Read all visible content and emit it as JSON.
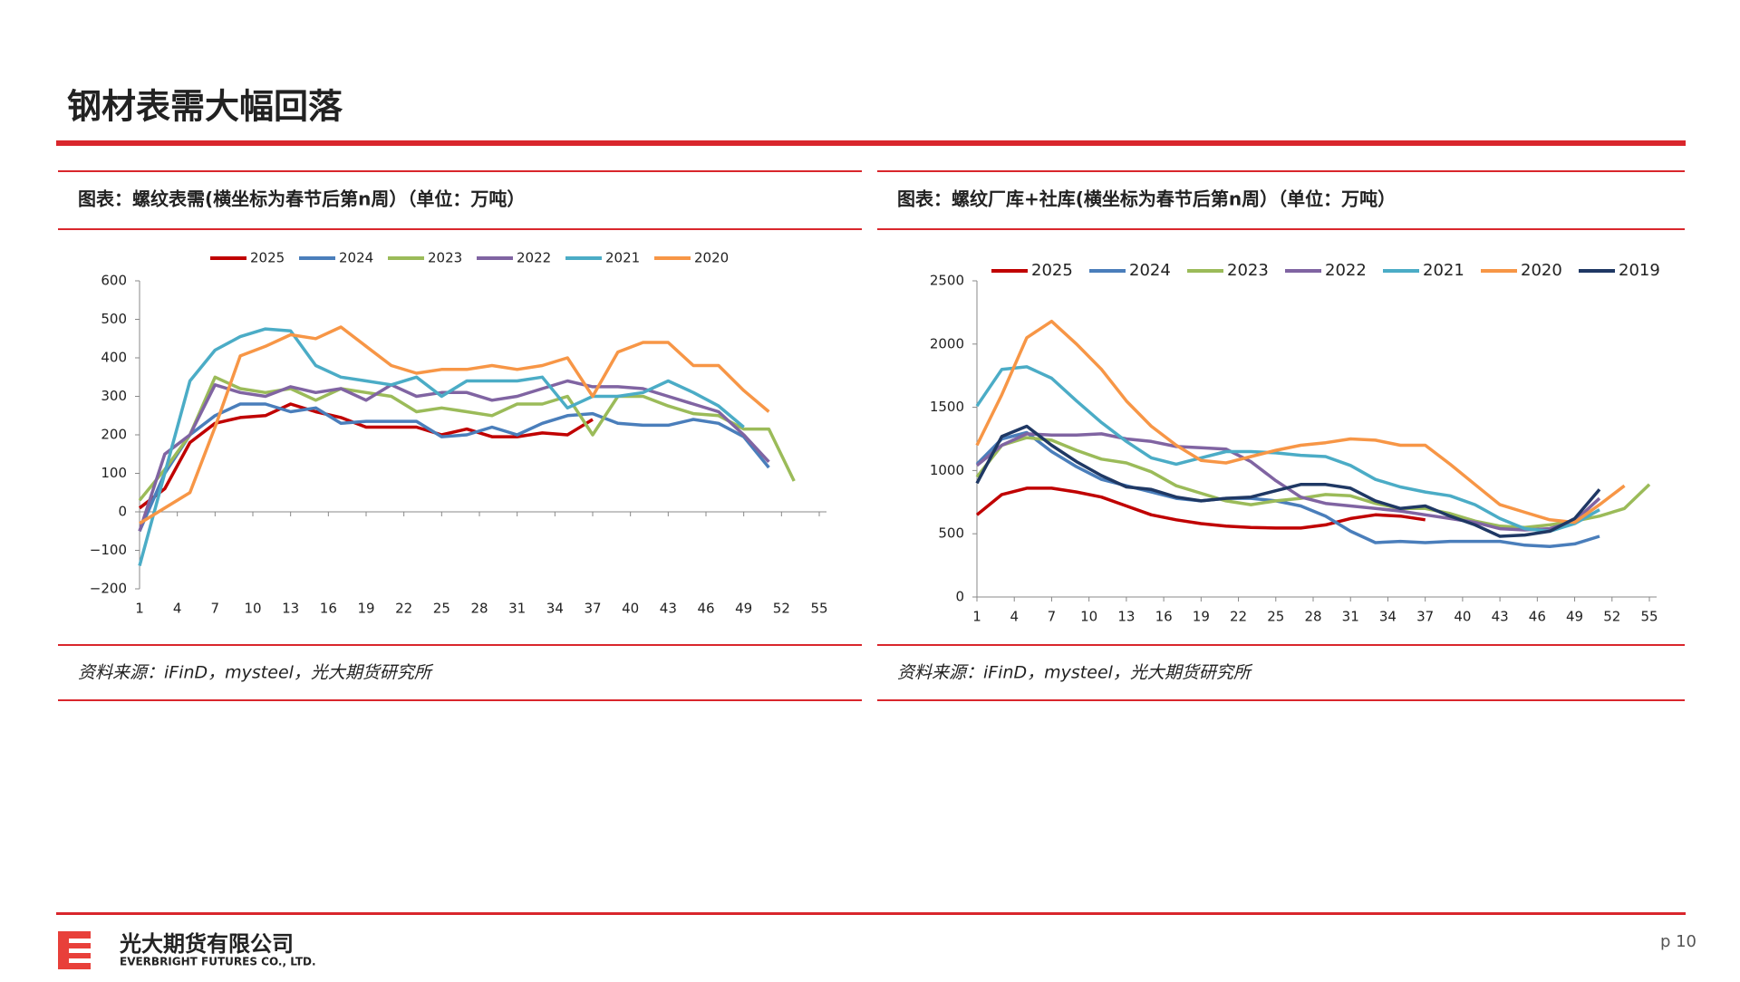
{
  "header": {
    "title": "钢材表需大幅回落"
  },
  "footer": {
    "company": "光大期货有限公司",
    "company_en": "EVERBRIGHT FUTURES CO., LTD.",
    "page": "p 10"
  },
  "chart_data": [
    {
      "type": "line",
      "title": "图表：螺纹表需(横坐标为春节后第n周）（单位：万吨）",
      "source": "资料来源：iFinD，mysteel，光大期货研究所",
      "x": [
        1,
        3,
        5,
        7,
        9,
        11,
        13,
        15,
        17,
        19,
        21,
        23,
        25,
        27,
        29,
        31,
        33,
        35,
        37,
        39,
        41,
        43,
        45,
        47,
        49,
        51,
        53
      ],
      "xlim": [
        1,
        55
      ],
      "xticks": [
        1,
        4,
        7,
        10,
        13,
        16,
        19,
        22,
        25,
        28,
        31,
        34,
        37,
        40,
        43,
        46,
        49,
        52,
        55
      ],
      "ylim": [
        -200,
        600
      ],
      "yticks": [
        {
          "value": -200,
          "label": "−200"
        },
        {
          "value": -100,
          "label": "−100"
        },
        0,
        100,
        200,
        300,
        400,
        500,
        600
      ],
      "series": [
        {
          "name": "2025",
          "color": "#c00000",
          "values": [
            10,
            60,
            180,
            230,
            245,
            250,
            280,
            260,
            245,
            220,
            220,
            220,
            200,
            215,
            195,
            195,
            205,
            200,
            240,
            null,
            null,
            null,
            null,
            null,
            null,
            null,
            null
          ]
        },
        {
          "name": "2024",
          "color": "#4a7ebb",
          "values": [
            -50,
            100,
            200,
            250,
            280,
            280,
            260,
            270,
            230,
            235,
            235,
            235,
            195,
            200,
            220,
            200,
            230,
            250,
            255,
            230,
            225,
            225,
            240,
            230,
            195,
            115,
            null
          ]
        },
        {
          "name": "2023",
          "color": "#9bbb59",
          "values": [
            30,
            110,
            200,
            350,
            320,
            310,
            320,
            290,
            320,
            310,
            300,
            260,
            270,
            260,
            250,
            280,
            280,
            300,
            200,
            300,
            300,
            275,
            255,
            250,
            215,
            215,
            80
          ]
        },
        {
          "name": "2022",
          "color": "#8064a2",
          "values": [
            -50,
            150,
            200,
            330,
            310,
            300,
            325,
            310,
            320,
            290,
            330,
            300,
            310,
            310,
            290,
            300,
            320,
            340,
            325,
            325,
            320,
            300,
            280,
            260,
            200,
            130,
            null
          ]
        },
        {
          "name": "2021",
          "color": "#4bacc6",
          "values": [
            -140,
            100,
            340,
            420,
            455,
            475,
            470,
            380,
            350,
            340,
            330,
            350,
            300,
            340,
            340,
            340,
            350,
            270,
            300,
            300,
            310,
            340,
            310,
            275,
            220,
            null,
            null
          ]
        },
        {
          "name": "2020",
          "color": "#f79646",
          "values": [
            -30,
            10,
            50,
            220,
            405,
            430,
            460,
            450,
            480,
            430,
            380,
            360,
            370,
            370,
            380,
            370,
            380,
            400,
            300,
            415,
            440,
            440,
            380,
            380,
            315,
            260,
            null
          ]
        }
      ]
    },
    {
      "type": "line",
      "title": "图表：螺纹厂库+社库(横坐标为春节后第n周）（单位：万吨）",
      "source": "资料来源：iFinD，mysteel，光大期货研究所",
      "x": [
        1,
        3,
        5,
        7,
        9,
        11,
        13,
        15,
        17,
        19,
        21,
        23,
        25,
        27,
        29,
        31,
        33,
        35,
        37,
        39,
        41,
        43,
        45,
        47,
        49,
        51,
        53,
        55
      ],
      "xlim": [
        1,
        55
      ],
      "xticks": [
        1,
        4,
        7,
        10,
        13,
        16,
        19,
        22,
        25,
        28,
        31,
        34,
        37,
        40,
        43,
        46,
        49,
        52,
        55
      ],
      "ylim": [
        0,
        2500
      ],
      "yticks": [
        0,
        500,
        1000,
        1500,
        2000,
        2500
      ],
      "series": [
        {
          "name": "2025",
          "color": "#c00000",
          "values": [
            650,
            810,
            860,
            860,
            830,
            790,
            720,
            650,
            610,
            580,
            560,
            550,
            545,
            545,
            570,
            620,
            650,
            640,
            610,
            null,
            null,
            null,
            null,
            null,
            null,
            null,
            null,
            null
          ]
        },
        {
          "name": "2024",
          "color": "#4a7ebb",
          "values": [
            1050,
            1250,
            1300,
            1150,
            1030,
            930,
            880,
            830,
            780,
            760,
            780,
            780,
            760,
            720,
            640,
            520,
            430,
            440,
            430,
            440,
            440,
            440,
            410,
            400,
            420,
            480,
            null,
            null
          ]
        },
        {
          "name": "2023",
          "color": "#9bbb59",
          "values": [
            950,
            1200,
            1260,
            1240,
            1160,
            1090,
            1060,
            990,
            880,
            820,
            760,
            730,
            760,
            780,
            810,
            800,
            740,
            700,
            700,
            660,
            600,
            560,
            550,
            570,
            600,
            640,
            700,
            890
          ]
        },
        {
          "name": "2022",
          "color": "#8064a2",
          "values": [
            1040,
            1200,
            1290,
            1280,
            1280,
            1290,
            1250,
            1230,
            1190,
            1180,
            1170,
            1070,
            920,
            790,
            740,
            720,
            700,
            680,
            650,
            620,
            590,
            540,
            530,
            540,
            600,
            780,
            null,
            null
          ]
        },
        {
          "name": "2021",
          "color": "#4bacc6",
          "values": [
            1510,
            1800,
            1820,
            1730,
            1550,
            1380,
            1230,
            1100,
            1050,
            1100,
            1150,
            1150,
            1140,
            1120,
            1110,
            1040,
            930,
            870,
            830,
            800,
            730,
            620,
            540,
            520,
            580,
            690,
            null,
            null
          ]
        },
        {
          "name": "2020",
          "color": "#f79646",
          "values": [
            1200,
            1600,
            2050,
            2180,
            2000,
            1800,
            1550,
            1350,
            1200,
            1080,
            1060,
            1110,
            1160,
            1200,
            1220,
            1250,
            1240,
            1200,
            1200,
            1050,
            890,
            730,
            670,
            610,
            590,
            730,
            880,
            null
          ]
        },
        {
          "name": "2019",
          "color": "#1f3864",
          "values": [
            900,
            1270,
            1350,
            1200,
            1070,
            960,
            870,
            850,
            790,
            760,
            780,
            790,
            840,
            890,
            890,
            860,
            760,
            700,
            720,
            640,
            570,
            480,
            490,
            520,
            620,
            850,
            null,
            null
          ]
        }
      ]
    }
  ]
}
